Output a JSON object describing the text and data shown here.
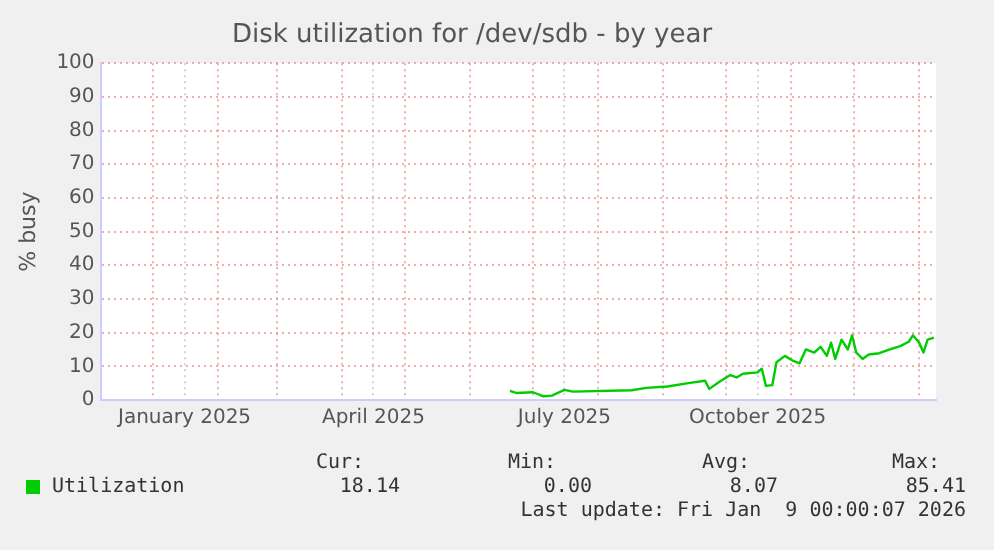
{
  "chart_data": {
    "type": "line",
    "title": "Disk utilization for /dev/sdb - by year",
    "ylabel": "% busy",
    "x": [
      "2025-06-20",
      "2025-06-23",
      "2025-07-01",
      "2025-07-06",
      "2025-07-10",
      "2025-07-16",
      "2025-07-20",
      "2025-08-17",
      "2025-08-24",
      "2025-09-03",
      "2025-09-13",
      "2025-09-21",
      "2025-09-23",
      "2025-09-28",
      "2025-10-03",
      "2025-10-06",
      "2025-10-09",
      "2025-10-16",
      "2025-10-18",
      "2025-10-20",
      "2025-10-23",
      "2025-10-25",
      "2025-10-29",
      "2025-11-02",
      "2025-11-05",
      "2025-11-08",
      "2025-11-12",
      "2025-11-15",
      "2025-11-18",
      "2025-11-20",
      "2025-11-22",
      "2025-11-25",
      "2025-11-28",
      "2025-11-30",
      "2025-12-02",
      "2025-12-05",
      "2025-12-08",
      "2025-12-13",
      "2025-12-18",
      "2025-12-23",
      "2025-12-27",
      "2025-12-29",
      "2026-01-01",
      "2026-01-03",
      "2026-01-05",
      "2026-01-07",
      "2026-01-08"
    ],
    "series": [
      {
        "name": "Utilization",
        "color": "#00cc00",
        "values": [
          2.7,
          2.1,
          2.3,
          1.1,
          1.3,
          3.0,
          2.5,
          2.9,
          3.6,
          4.0,
          5.0,
          5.7,
          3.3,
          5.5,
          7.4,
          6.7,
          7.8,
          8.2,
          9.3,
          4.2,
          4.4,
          11.2,
          13.1,
          11.6,
          10.9,
          15.0,
          14.1,
          15.8,
          13.1,
          17.0,
          12.2,
          17.9,
          15.0,
          19.2,
          14.1,
          12.2,
          13.5,
          13.9,
          15.0,
          16.0,
          17.3,
          19.2,
          17.0,
          14.1,
          17.9,
          18.3,
          18.5
        ]
      }
    ],
    "xlim": [
      "2024-12-07",
      "2026-01-09"
    ],
    "xticks": [
      {
        "value": "2025-01-01",
        "label": null
      },
      {
        "value": "2025-01-16",
        "label": "January 2025"
      },
      {
        "value": "2025-02-01",
        "label": null
      },
      {
        "value": "2025-03-01",
        "label": null
      },
      {
        "value": "2025-04-01",
        "label": null
      },
      {
        "value": "2025-04-16",
        "label": "April 2025"
      },
      {
        "value": "2025-05-01",
        "label": null
      },
      {
        "value": "2025-06-01",
        "label": null
      },
      {
        "value": "2025-07-01",
        "label": null
      },
      {
        "value": "2025-07-16",
        "label": "July 2025"
      },
      {
        "value": "2025-08-01",
        "label": null
      },
      {
        "value": "2025-09-01",
        "label": null
      },
      {
        "value": "2025-10-01",
        "label": null
      },
      {
        "value": "2025-10-16",
        "label": "October 2025"
      },
      {
        "value": "2025-11-01",
        "label": null
      },
      {
        "value": "2025-12-01",
        "label": null
      },
      {
        "value": "2026-01-01",
        "label": null
      }
    ],
    "ylim": [
      0,
      100
    ],
    "yticks": [
      0,
      10,
      20,
      30,
      40,
      50,
      60,
      70,
      80,
      90,
      100
    ],
    "grid": true,
    "legend": "bottom",
    "marker": "none",
    "line_style": "solid",
    "annotations": [
      "Cur:",
      "Min:",
      "Avg:",
      "Max:",
      "18.14",
      "0.00",
      "8.07",
      "85.41",
      "Last update: Fri Jan  9 00:00:07 2026"
    ]
  }
}
